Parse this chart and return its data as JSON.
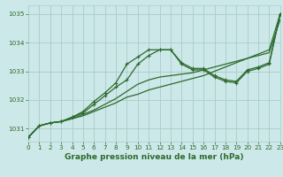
{
  "title": "Graphe pression niveau de la mer (hPa)",
  "background_color": "#cce8e8",
  "grid_color": "#aacccc",
  "line_color": "#2d6a2d",
  "xlim": [
    0,
    23
  ],
  "ylim": [
    1030.55,
    1035.3
  ],
  "yticks": [
    1031,
    1032,
    1033,
    1034,
    1035
  ],
  "xticks": [
    0,
    1,
    2,
    3,
    4,
    5,
    6,
    7,
    8,
    9,
    10,
    11,
    12,
    13,
    14,
    15,
    16,
    17,
    18,
    19,
    20,
    21,
    22,
    23
  ],
  "series": [
    {
      "y": [
        1030.7,
        1031.1,
        1031.2,
        1031.25,
        1031.35,
        1031.45,
        1031.6,
        1031.75,
        1031.9,
        1032.1,
        1032.2,
        1032.35,
        1032.45,
        1032.55,
        1032.65,
        1032.75,
        1032.85,
        1033.0,
        1033.15,
        1033.3,
        1033.45,
        1033.6,
        1033.75,
        1035.0
      ],
      "marker": false,
      "lw": 0.9
    },
    {
      "y": [
        1030.7,
        1031.1,
        1031.2,
        1031.25,
        1031.35,
        1031.5,
        1031.65,
        1031.85,
        1032.05,
        1032.3,
        1032.55,
        1032.7,
        1032.8,
        1032.85,
        1032.9,
        1032.95,
        1033.05,
        1033.15,
        1033.25,
        1033.35,
        1033.45,
        1033.55,
        1033.65,
        1034.8
      ],
      "marker": false,
      "lw": 0.9
    },
    {
      "y": [
        1030.7,
        1031.1,
        1031.2,
        1031.25,
        1031.4,
        1031.55,
        1031.85,
        1032.15,
        1032.45,
        1032.7,
        1033.25,
        1033.55,
        1033.75,
        1033.75,
        1033.3,
        1033.1,
        1033.1,
        1032.85,
        1032.7,
        1032.65,
        1033.05,
        1033.15,
        1033.3,
        1035.0
      ],
      "marker": true,
      "lw": 0.9
    },
    {
      "y": [
        1030.7,
        1031.1,
        1031.2,
        1031.25,
        1031.4,
        1031.6,
        1031.95,
        1032.25,
        1032.6,
        1033.25,
        1033.5,
        1033.75,
        1033.75,
        1033.75,
        1033.25,
        1033.05,
        1033.05,
        1032.8,
        1032.65,
        1032.6,
        1033.0,
        1033.1,
        1033.25,
        1035.0
      ],
      "marker": true,
      "lw": 0.9
    }
  ],
  "title_fontsize": 6.5,
  "tick_fontsize": 5.2,
  "marker_size": 3.5,
  "marker_lw": 0.8
}
